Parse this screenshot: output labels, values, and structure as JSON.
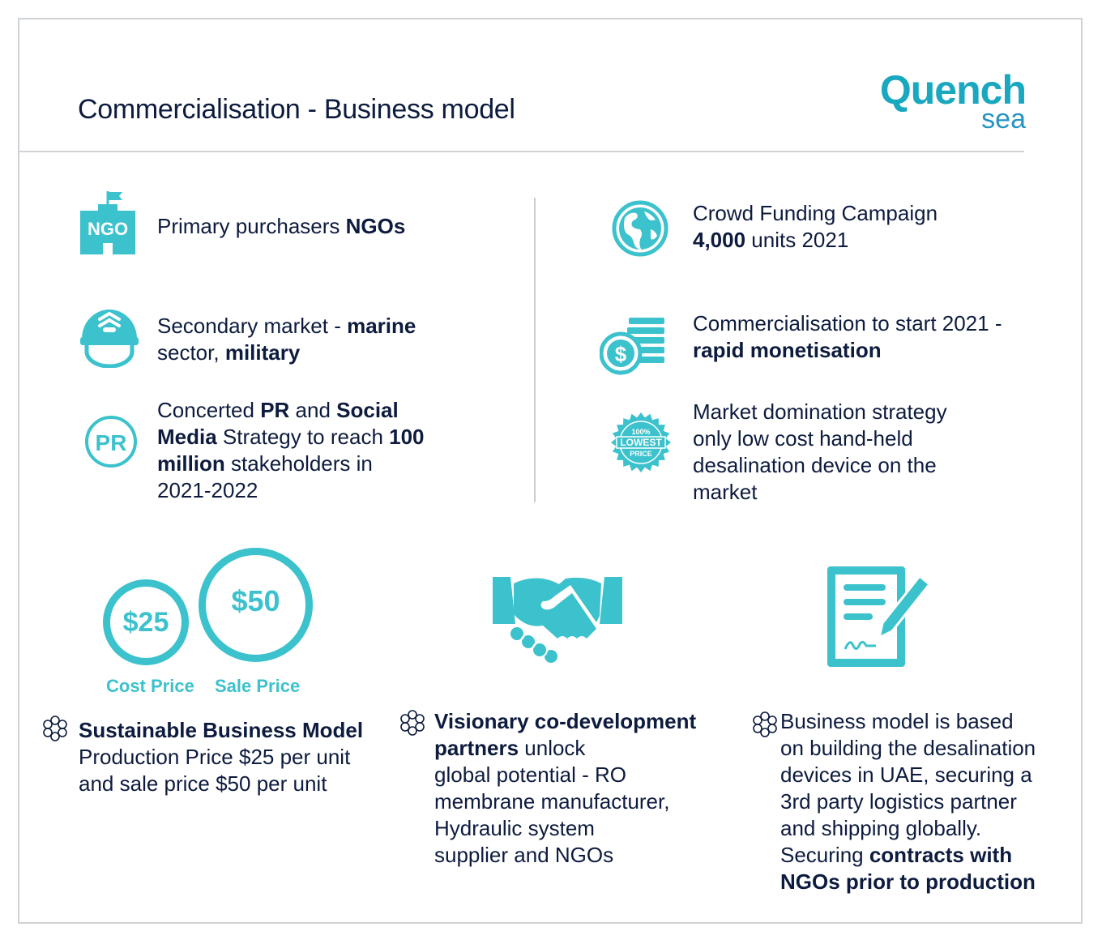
{
  "header": {
    "title": "Commercialisation - Business model",
    "logo_top": "Quench",
    "logo_bottom": "sea"
  },
  "colors": {
    "accent": "#3cc2cc",
    "navy": "#0d1b3e",
    "logo": "#1aa7c0"
  },
  "items_left": [
    {
      "icon": "ngo-building-icon",
      "icon_text": "NGO",
      "parts": [
        [
          "Primary purchasers ",
          false
        ],
        [
          "NGOs",
          true
        ]
      ]
    },
    {
      "icon": "military-helmet-icon",
      "parts": [
        [
          "Secondary market - ",
          false
        ],
        [
          "marine",
          true
        ],
        [
          "\nsector, ",
          false
        ],
        [
          "military",
          true
        ]
      ]
    },
    {
      "icon": "pr-badge-icon",
      "icon_text": "PR",
      "parts": [
        [
          "Concerted ",
          false
        ],
        [
          "PR",
          true
        ],
        [
          " and ",
          false
        ],
        [
          "Social",
          true
        ],
        [
          "\n",
          false
        ],
        [
          "Media",
          true
        ],
        [
          " Strategy to reach ",
          false
        ],
        [
          "100",
          true
        ],
        [
          "\n",
          false
        ],
        [
          "million",
          true
        ],
        [
          " stakeholders in\n2021-2022",
          false
        ]
      ]
    }
  ],
  "items_right": [
    {
      "icon": "globe-icon",
      "parts": [
        [
          "Crowd Funding Campaign\n",
          false
        ],
        [
          "4,000",
          true
        ],
        [
          " units 2021",
          false
        ]
      ]
    },
    {
      "icon": "money-coins-icon",
      "parts": [
        [
          "Commercialisation to start 2021 -\n",
          false
        ],
        [
          "rapid monetisation",
          true
        ]
      ]
    },
    {
      "icon": "lowest-price-badge-icon",
      "badge_lines": [
        "100%",
        "LOWEST",
        "PRICE"
      ],
      "parts": [
        [
          "Market domination strategy\nonly low cost hand-held\ndesalination device on the\nmarket",
          false
        ]
      ]
    }
  ],
  "prices": {
    "cost_value": "$25",
    "cost_label": "Cost Price",
    "sale_value": "$50",
    "sale_label": "Sale Price"
  },
  "bottom": [
    {
      "parts": [
        [
          "Sustainable Business Model",
          true
        ],
        [
          "\nProduction Price $25 per unit\nand sale price $50 per unit",
          false
        ]
      ]
    },
    {
      "parts": [
        [
          "Visionary co-development\npartners",
          true
        ],
        [
          " unlock\nglobal potential - RO\nmembrane manufacturer,\nHydraulic system\nsupplier and NGOs",
          false
        ]
      ]
    },
    {
      "parts": [
        [
          "Business model is based\non building the desalination\ndevices in UAE, securing a\n3rd party logistics partner\nand shipping globally.\nSecuring ",
          false
        ],
        [
          "contracts with\nNGOs prior to production",
          true
        ]
      ]
    }
  ]
}
